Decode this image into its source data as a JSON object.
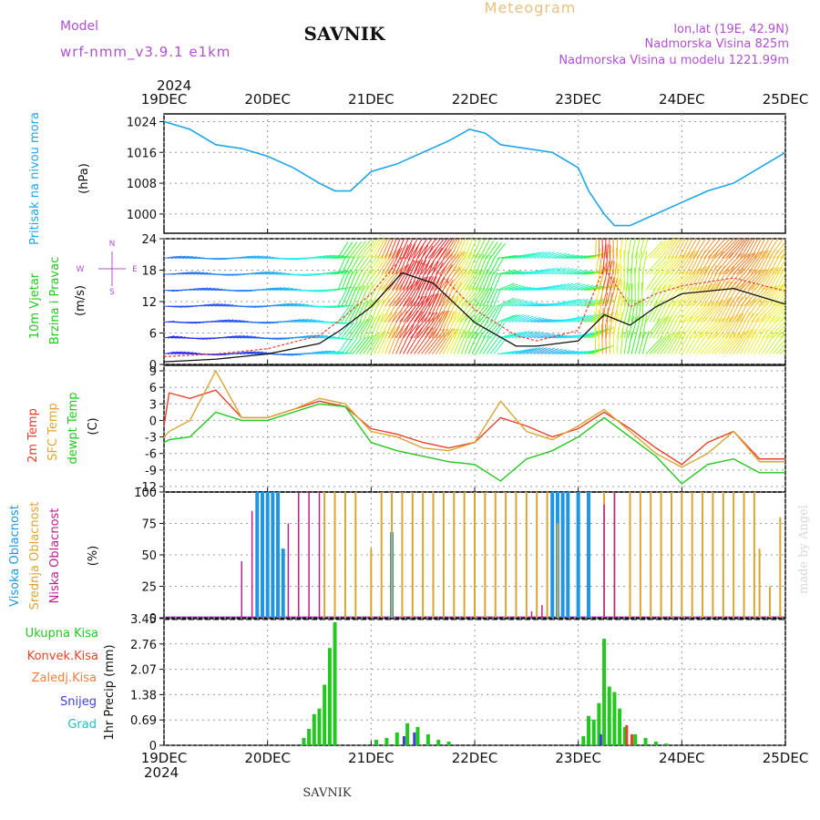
{
  "header": {
    "model_label": "Model",
    "model_name": "wrf-nmm_v3.9.1 e1km",
    "station": "SAVNIK",
    "chart_type": "Meteogram",
    "coords": "lon,lat (19E, 42.9N)",
    "elevation": "Nadmorska Visina 825m",
    "model_elevation": "Nadmorska Visina u modelu 1221.99m",
    "year_top": "2024",
    "year_bottom": "2024",
    "footer_station": "SAVNIK",
    "credit": "made by Angel"
  },
  "colors": {
    "pressure": "#1fa6e8",
    "temp2m": "#e8412a",
    "sfc_temp": "#dba534",
    "dewpt": "#22c81e",
    "wind_speed": "#111111",
    "gust": "#e8412a",
    "high_cloud": "#2096e0",
    "mid_cloud": "#dba534",
    "low_cloud": "#c0208c",
    "total_precip": "#22c81e",
    "conv_precip": "#e8412a",
    "frozen": "#f08040",
    "snow": "#4040d8",
    "hail": "#20c0c0",
    "purple_text": "#b050d0"
  },
  "days": [
    "19DEC",
    "20DEC",
    "21DEC",
    "22DEC",
    "23DEC",
    "24DEC",
    "25DEC"
  ],
  "panels": {
    "pressure": {
      "ylabel_name": "Pritisak na nivou mora",
      "ylabel_unit": "(hPa)",
      "ticks": [
        "1024",
        "1016",
        "1008",
        "1000"
      ]
    },
    "wind": {
      "ylabel_name_1": "10m Vjetar",
      "ylabel_name_2": "Brzina i Pravac",
      "ylabel_unit": "(m/s)",
      "ticks": [
        "24",
        "18",
        "12",
        "6",
        "0"
      ],
      "compass_n": "N",
      "compass_s": "S",
      "compass_e": "E",
      "compass_w": "W"
    },
    "temp": {
      "label_2m": "2m Temp",
      "label_sfc": "SFC Temp",
      "label_dew": "dewpt Temp",
      "ylabel_unit": "(C)",
      "ticks": [
        "9",
        "6",
        "3",
        "0",
        "-3",
        "-6",
        "-9",
        "-12"
      ]
    },
    "cloud": {
      "label_high": "Visoka Oblacnost",
      "label_mid": "Srednja Oblacnost",
      "label_low": "Niska Oblacnost",
      "ylabel_unit": "(%)",
      "ticks": [
        "100",
        "75",
        "50",
        "25",
        "0"
      ]
    },
    "precip": {
      "legend_total": "Ukupna Kisa",
      "legend_conv": "Konvek.Kisa",
      "legend_frozen": "Zaledj.Kisa",
      "legend_snow": "Snijeg",
      "legend_hail": "Grad",
      "ylabel": "1hr Precip (mm)",
      "ticks": [
        "3.45",
        "2.76",
        "2.07",
        "1.38",
        "0.69",
        "0"
      ]
    }
  },
  "chart_data": [
    {
      "type": "line",
      "title": "Pritisak na nivou mora",
      "ylabel": "(hPa)",
      "ylim": [
        995,
        1026
      ],
      "x_range_days": [
        0,
        6
      ],
      "x": [
        0,
        0.25,
        0.5,
        0.75,
        1.0,
        1.25,
        1.5,
        1.65,
        1.8,
        2.0,
        2.25,
        2.5,
        2.75,
        2.95,
        3.1,
        3.25,
        3.5,
        3.75,
        4.0,
        4.1,
        4.25,
        4.35,
        4.5,
        4.75,
        5.0,
        5.25,
        5.5,
        5.75,
        6.0
      ],
      "series": [
        {
          "values": [
            1024,
            1022,
            1018,
            1017,
            1015,
            1012,
            1008,
            1006,
            1006,
            1011,
            1013,
            1016,
            1019,
            1022,
            1021,
            1018,
            1017,
            1016,
            1012,
            1006,
            1000,
            997,
            997,
            1000,
            1003,
            1006,
            1008,
            1012,
            1016
          ]
        }
      ]
    },
    {
      "type": "line",
      "title": "10m Vjetar Brzina i Pravac",
      "ylabel": "(m/s)",
      "ylim": [
        0,
        24
      ],
      "x": [
        0,
        0.5,
        1.0,
        1.5,
        1.7,
        2.0,
        2.3,
        2.6,
        3.0,
        3.4,
        3.6,
        4.0,
        4.25,
        4.5,
        4.75,
        5.0,
        5.5,
        6.0
      ],
      "series": [
        {
          "values": [
            0.5,
            1.0,
            2.0,
            4.0,
            6.5,
            11.0,
            17.5,
            15.5,
            8.0,
            3.5,
            3.5,
            4.5,
            9.5,
            7.5,
            11.0,
            13.5,
            14.5,
            11.5
          ]
        },
        {
          "values": [
            1.5,
            2.0,
            3.0,
            5.5,
            8.5,
            13.5,
            20.5,
            18.5,
            10.5,
            5.5,
            4.5,
            6.5,
            18.5,
            11.0,
            13.5,
            15.0,
            16.5,
            14.0
          ]
        }
      ]
    },
    {
      "type": "line",
      "title": "Temp",
      "ylabel": "(C)",
      "ylim": [
        -13,
        10
      ],
      "x": [
        0,
        0.05,
        0.25,
        0.5,
        0.75,
        1.0,
        1.25,
        1.5,
        1.75,
        2.0,
        2.25,
        2.5,
        2.75,
        3.0,
        3.25,
        3.5,
        3.75,
        4.0,
        4.25,
        4.5,
        4.75,
        5.0,
        5.25,
        5.5,
        5.75,
        6.0
      ],
      "series": [
        {
          "name": "2m Temp",
          "values": [
            -1,
            5,
            4,
            5.5,
            0.5,
            0.5,
            2,
            3.5,
            2.5,
            -1.5,
            -2.5,
            -4,
            -5,
            -4,
            0.5,
            -1,
            -3,
            -1.5,
            1.5,
            -1.5,
            -5,
            -8,
            -4,
            -2,
            -7,
            -7
          ]
        },
        {
          "name": "SFC Temp",
          "values": [
            -3,
            -2,
            0,
            9,
            0.5,
            0.5,
            2,
            4,
            3,
            -2,
            -3,
            -5,
            -5.5,
            -4,
            3.5,
            -2,
            -3.5,
            -1,
            2,
            -2,
            -6,
            -8.5,
            -6,
            -2,
            -7.5,
            -7.5
          ]
        },
        {
          "name": "dewpt Temp",
          "values": [
            -4,
            -3.5,
            -3,
            1.5,
            0,
            0,
            1.5,
            3,
            2.5,
            -4,
            -5.5,
            -6.5,
            -7.5,
            -8,
            -11,
            -7,
            -5.5,
            -3,
            0.5,
            -3,
            -6.5,
            -11.5,
            -8,
            -7,
            -9.5,
            -9.5
          ]
        }
      ]
    },
    {
      "type": "bar",
      "title": "Oblacnost",
      "ylabel": "(%)",
      "ylim": [
        0,
        100
      ],
      "series": [
        {
          "name": "Visoka Oblacnost",
          "x": [
            0.9,
            0.95,
            1.0,
            1.05,
            1.1,
            1.15,
            2.2,
            3.75,
            3.8,
            3.85,
            3.9,
            4.0,
            4.1
          ],
          "values": [
            100,
            100,
            100,
            100,
            100,
            55,
            68,
            100,
            100,
            100,
            100,
            100,
            100
          ]
        },
        {
          "name": "Srednja Oblacnost",
          "x": [
            1.55,
            1.65,
            1.75,
            1.85,
            2.0,
            2.1,
            2.2,
            2.3,
            2.4,
            2.5,
            2.6,
            2.7,
            2.8,
            2.9,
            3.0,
            3.1,
            3.2,
            3.3,
            3.4,
            3.5,
            3.6,
            3.7,
            3.8,
            4.25,
            4.35,
            4.5,
            4.6,
            4.7,
            4.8,
            4.9,
            5.0,
            5.1,
            5.2,
            5.3,
            5.4,
            5.5,
            5.6,
            5.7,
            5.75,
            5.85,
            5.95
          ],
          "values": [
            100,
            100,
            100,
            100,
            55,
            100,
            100,
            100,
            100,
            100,
            100,
            100,
            100,
            100,
            100,
            100,
            100,
            100,
            100,
            100,
            100,
            100,
            75,
            100,
            100,
            100,
            100,
            100,
            100,
            100,
            100,
            100,
            100,
            100,
            100,
            100,
            100,
            100,
            55,
            25,
            80
          ]
        },
        {
          "name": "Niska Oblacnost",
          "x": [
            0.75,
            0.85,
            1.2,
            1.3,
            1.4,
            1.5,
            3.55,
            3.65,
            4.25,
            4.35
          ],
          "values": [
            45,
            85,
            75,
            100,
            100,
            100,
            5,
            10,
            90,
            100
          ]
        }
      ]
    },
    {
      "type": "bar",
      "title": "1hr Precip",
      "ylabel": "1hr Precip (mm)",
      "ylim": [
        0,
        3.45
      ],
      "series": [
        {
          "name": "Ukupna Kisa",
          "x": [
            1.35,
            1.4,
            1.45,
            1.5,
            1.55,
            1.6,
            1.65,
            2.05,
            2.15,
            2.25,
            2.35,
            2.45,
            2.55,
            2.65,
            2.75,
            4.05,
            4.1,
            4.15,
            4.2,
            4.25,
            4.3,
            4.35,
            4.4,
            4.45,
            4.55,
            4.65,
            4.75,
            4.85
          ],
          "values": [
            0.2,
            0.45,
            0.85,
            1.0,
            1.65,
            2.65,
            3.35,
            0.15,
            0.2,
            0.35,
            0.6,
            0.5,
            0.3,
            0.15,
            0.1,
            0.25,
            0.8,
            0.7,
            1.15,
            2.9,
            1.6,
            1.45,
            1.0,
            0.5,
            0.3,
            0.2,
            0.1,
            0.05
          ]
        },
        {
          "name": "Konvek.Kisa",
          "x": [
            4.45,
            4.5
          ],
          "values": [
            0.55,
            0.3
          ]
        },
        {
          "name": "Snijeg",
          "x": [
            2.3,
            2.4,
            4.2
          ],
          "values": [
            0.25,
            0.35,
            0.3
          ]
        }
      ]
    }
  ]
}
